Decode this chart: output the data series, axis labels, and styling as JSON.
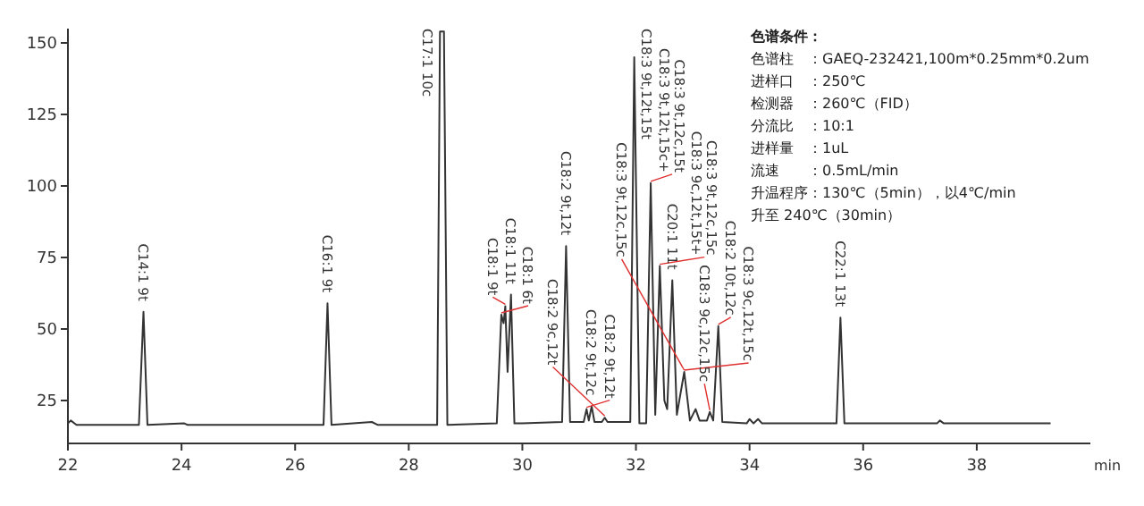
{
  "chart_data": {
    "type": "line",
    "xlabel": "min",
    "x": [
      22.0,
      22.05,
      22.15,
      23.25,
      23.33,
      23.4,
      24.05,
      24.1,
      26.5,
      26.57,
      26.64,
      27.35,
      27.45,
      28.5,
      28.55,
      28.62,
      28.68,
      29.55,
      29.63,
      29.67,
      29.7,
      29.74,
      29.8,
      29.86,
      30.0,
      30.7,
      30.77,
      30.84,
      31.08,
      31.13,
      31.17,
      31.22,
      31.27,
      31.4,
      31.45,
      31.5,
      31.9,
      31.97,
      32.06,
      32.18,
      32.26,
      32.34,
      32.42,
      32.5,
      32.55,
      32.64,
      32.72,
      32.85,
      32.95,
      33.05,
      33.12,
      33.25,
      33.3,
      33.36,
      33.45,
      33.52,
      33.95,
      34.0,
      34.07,
      34.15,
      34.22,
      35.53,
      35.6,
      35.67,
      37.3,
      37.35,
      37.42,
      39.3
    ],
    "series": [
      {
        "color": "#333333",
        "values": [
          17,
          18,
          16.5,
          16.5,
          56,
          16.5,
          17,
          16.5,
          16.5,
          59,
          16.5,
          17.5,
          16.5,
          16.5,
          154,
          154,
          16.5,
          17,
          55,
          52,
          58,
          35,
          62,
          17,
          17,
          17.5,
          79,
          17.5,
          17.5,
          22,
          18,
          23,
          17.5,
          17.5,
          19,
          17.5,
          17.5,
          145,
          17,
          17,
          101,
          20,
          72,
          25,
          22,
          67,
          20,
          35,
          18,
          22,
          18,
          18,
          21,
          18,
          51,
          17.5,
          17,
          18.5,
          17,
          18.5,
          17,
          17,
          54,
          17,
          17,
          18,
          17,
          17
        ]
      }
    ],
    "xlim": [
      22,
      40
    ],
    "xticks": [
      22,
      24,
      26,
      28,
      30,
      32,
      34,
      36,
      38
    ],
    "ylim": [
      10,
      155
    ],
    "yticks": [
      25,
      50,
      75,
      100,
      125,
      150
    ],
    "grid": false,
    "marker": "none",
    "line_style": "solid",
    "annotations": [
      {
        "text": "C14:1 9t",
        "x": 23.33,
        "y": 56
      },
      {
        "text": "C16:1 9t",
        "x": 26.57,
        "y": 59
      },
      {
        "text": "C17:1 10c",
        "x": 28.55,
        "y": 154
      },
      {
        "text": "C18:1 6t",
        "x": 29.63,
        "y": 55
      },
      {
        "text": "C18:1 9t",
        "x": 29.7,
        "y": 58
      },
      {
        "text": "C18:1 11t",
        "x": 29.8,
        "y": 62
      },
      {
        "text": "C18:2 9t,12t",
        "x": 30.77,
        "y": 79
      },
      {
        "text": "C18:2 9t,12t",
        "x": 31.13,
        "y": 22
      },
      {
        "text": "C18:2 9t,12c",
        "x": 31.22,
        "y": 23
      },
      {
        "text": "C18:2 9c,12t",
        "x": 31.45,
        "y": 19
      },
      {
        "text": "C18:3 9t,12t,15t",
        "x": 31.97,
        "y": 145
      },
      {
        "text": "C18:3 9t,12t,15c+C18:3 9t,12c,15t",
        "x": 32.26,
        "y": 101
      },
      {
        "text": "C18:3 9c,12t,15t+C18:3 9t,12c,15c",
        "x": 32.42,
        "y": 72
      },
      {
        "text": "C20:1 11t",
        "x": 32.64,
        "y": 67
      },
      {
        "text": "C18:3 9t,12c,15c",
        "x": 32.85,
        "y": 35
      },
      {
        "text": "C18:3 9c,12t,15c",
        "x": 32.85,
        "y": 35
      },
      {
        "text": "C18:3 9c,12c,15c",
        "x": 33.3,
        "y": 21
      },
      {
        "text": "C18:2 10t,12c",
        "x": 33.45,
        "y": 51
      },
      {
        "text": "C22:1 13t",
        "x": 35.6,
        "y": 54
      },
      "色谱条件：",
      "色谱柱　：GAEQ-232421,100m*0.25mm*0.2um",
      "进样口　：250℃",
      "检测器　：260℃（FID）",
      "分流比　：10:1",
      "进样量　：1uL",
      "流速　　：0.5mL/min",
      "升温程序：130℃（5min），以4℃/min",
      "升至 240℃（30min）"
    ]
  }
}
